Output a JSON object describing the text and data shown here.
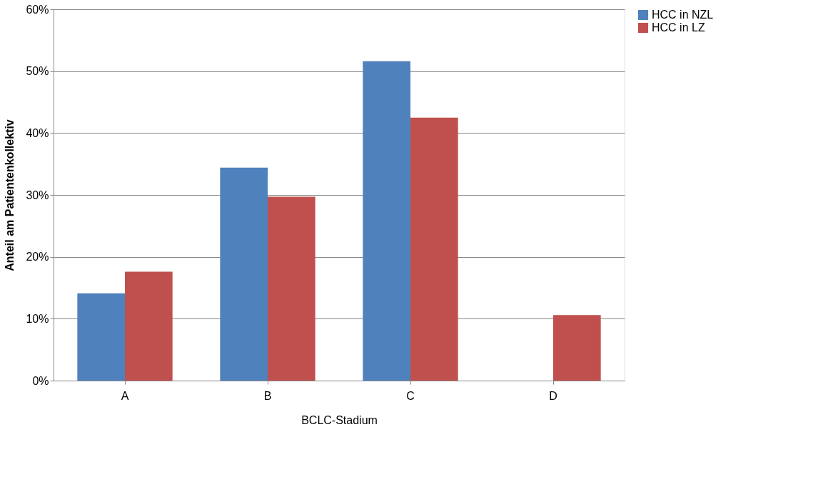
{
  "chart_data": {
    "type": "bar",
    "xlabel": "BCLC-Stadium",
    "ylabel": "Anteil  am Patientenkollektiv",
    "categories": [
      "A",
      "B",
      "C",
      "D"
    ],
    "series": [
      {
        "name": "HCC in NZL",
        "color": "#4f81bd",
        "values": [
          14.1,
          34.4,
          51.6,
          0
        ]
      },
      {
        "name": "HCC in LZ",
        "color": "#c0504d",
        "values": [
          17.6,
          29.7,
          42.5,
          10.6
        ]
      }
    ],
    "ylim": [
      0,
      60
    ],
    "yticks": [
      {
        "value": 0,
        "label": "0%"
      },
      {
        "value": 10,
        "label": "10%"
      },
      {
        "value": 20,
        "label": "20%"
      },
      {
        "value": 30,
        "label": "30%"
      },
      {
        "value": 40,
        "label": "40%"
      },
      {
        "value": 50,
        "label": "50%"
      },
      {
        "value": 60,
        "label": "60%"
      }
    ],
    "grid": "y",
    "legend": "right"
  }
}
